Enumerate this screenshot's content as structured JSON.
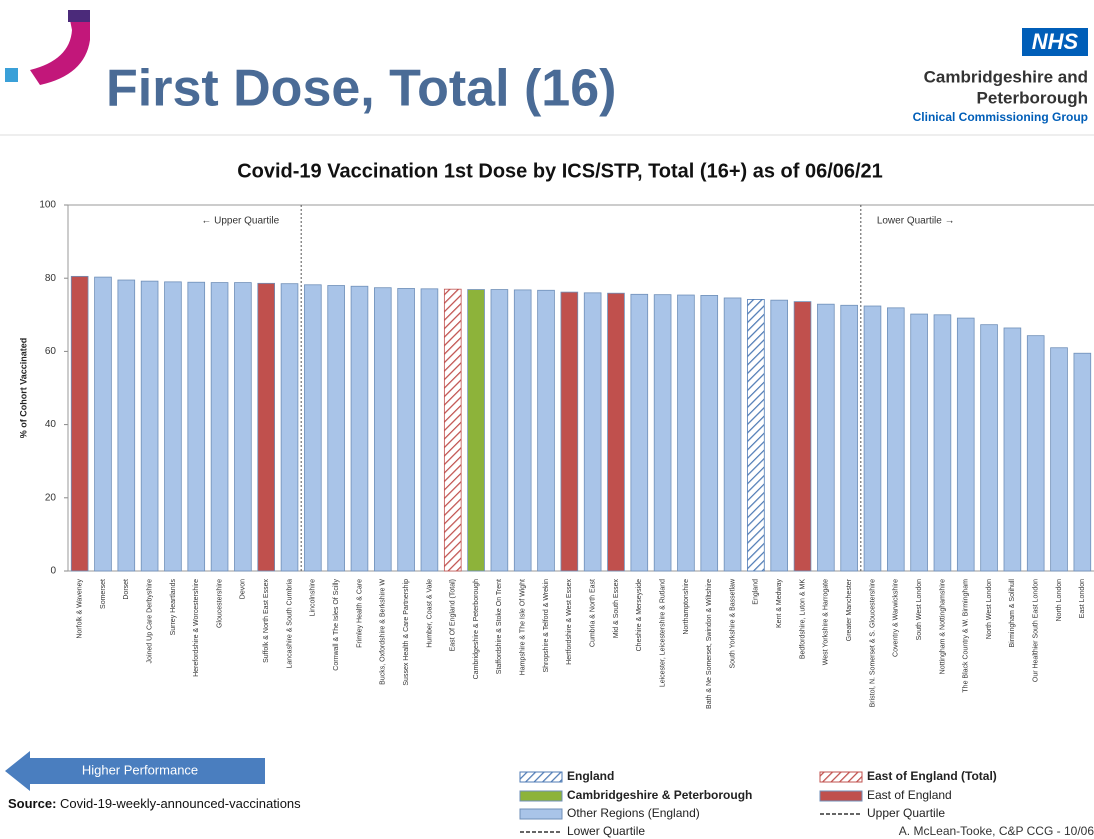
{
  "header": {
    "title": "First Dose, Total (16)",
    "logo": "NHS",
    "org_line1": "Cambridgeshire and",
    "org_line2": "Peterborough",
    "org_line3": "Clinical Commissioning Group"
  },
  "footer": {
    "arrow": "Higher Performance",
    "source_label": "Source:",
    "source": "Covid-19-weekly-announced-vaccinations",
    "credit": "A. McLean-Tooke, C&P CCG - 10/06"
  },
  "chart_data": {
    "type": "bar",
    "title": "Covid-19 Vaccination 1st Dose by ICS/STP, Total (16+) as of 06/06/21",
    "y_label": "% of Cohort Vaccinated",
    "ylim": [
      0,
      100
    ],
    "yticks": [
      0,
      20,
      40,
      60,
      80,
      100
    ],
    "categories": [
      "Norfolk & Waveney",
      "Somerset",
      "Dorset",
      "Joined Up Care Derbyshire",
      "Surrey Heartlands",
      "Herefordshire & Worcestershire",
      "Gloucestershire",
      "Devon",
      "Suffolk & North East Essex",
      "Lancashire & South Cumbria",
      "Lincolnshire",
      "Cornwall & The Isles Of Scilly",
      "Frimley Health & Care",
      "Bucks, Oxfordshire & Berkshire W",
      "Sussex Health & Care Partnership",
      "Humber, Coast & Vale",
      "East Of England (Total)",
      "Cambridgeshire & Peterborough",
      "Staffordshire & Stoke On Trent",
      "Hampshire & The Isle Of Wight",
      "Shropshire & Telford & Wrekin",
      "Hertfordshire & West Essex",
      "Cumbria & North East",
      "Mid & South Essex",
      "Cheshire & Merseyside",
      "Leicester, Leicestershire & Rutland",
      "Northamptonshire",
      "Bath & Ne Somerset, Swindon & Wiltshire",
      "South Yorkshire & Bassetlaw",
      "England",
      "Kent & Medway",
      "Bedfordshire, Luton & MK",
      "West Yorkshire & Harrogate",
      "Greater Manchester",
      "Bristol, N. Somerset & S. Gloucestershire",
      "Coventry & Warwickshire",
      "South West London",
      "Nottingham & Nottinghamshire",
      "The Black Country & W. Birmingham",
      "North West London",
      "Birmingham & Solihull",
      "Our Healthier South East London",
      "North London",
      "East London"
    ],
    "series": [
      {
        "name": "England",
        "color": "#4f7bb5",
        "hatched": true,
        "values": [
          null,
          null,
          null,
          null,
          null,
          null,
          null,
          null,
          null,
          null,
          null,
          null,
          null,
          null,
          null,
          null,
          null,
          null,
          null,
          null,
          null,
          null,
          null,
          null,
          null,
          null,
          null,
          null,
          null,
          74.2,
          null,
          null,
          null,
          null,
          null,
          null,
          null,
          null,
          null,
          null,
          null,
          null,
          null,
          null
        ]
      },
      {
        "name": "Cambridgeshire & Peterborough",
        "color": "#8db33a",
        "hatched": false,
        "values": [
          null,
          null,
          null,
          null,
          null,
          null,
          null,
          null,
          null,
          null,
          null,
          null,
          null,
          null,
          null,
          null,
          null,
          76.9,
          null,
          null,
          null,
          null,
          null,
          null,
          null,
          null,
          null,
          null,
          null,
          null,
          null,
          null,
          null,
          null,
          null,
          null,
          null,
          null,
          null,
          null,
          null,
          null,
          null,
          null
        ]
      },
      {
        "name": "Other Regions (England)",
        "color": "#a9c4e8",
        "hatched": false,
        "values": [
          null,
          80.3,
          79.5,
          79.2,
          79.0,
          78.9,
          78.8,
          78.8,
          null,
          78.5,
          78.2,
          78.0,
          77.8,
          77.4,
          77.2,
          77.1,
          null,
          null,
          76.9,
          76.8,
          76.7,
          null,
          76.0,
          null,
          75.6,
          75.5,
          75.4,
          75.3,
          74.6,
          null,
          74.0,
          null,
          72.9,
          72.6,
          72.4,
          71.9,
          70.2,
          70.0,
          69.1,
          67.3,
          66.4,
          64.3,
          61.0,
          59.5
        ]
      },
      {
        "name": "East of England (Total)",
        "color": "#c0504d",
        "hatched": true,
        "values": [
          null,
          null,
          null,
          null,
          null,
          null,
          null,
          null,
          null,
          null,
          null,
          null,
          null,
          null,
          null,
          null,
          77.0,
          null,
          null,
          null,
          null,
          null,
          null,
          null,
          null,
          null,
          null,
          null,
          null,
          null,
          null,
          null,
          null,
          null,
          null,
          null,
          null,
          null,
          null,
          null,
          null,
          null,
          null,
          null
        ]
      },
      {
        "name": "East of England",
        "color": "#c0504d",
        "hatched": false,
        "values": [
          80.5,
          null,
          null,
          null,
          null,
          null,
          null,
          null,
          78.6,
          null,
          null,
          null,
          null,
          null,
          null,
          null,
          null,
          null,
          null,
          null,
          null,
          76.2,
          null,
          75.9,
          null,
          null,
          null,
          null,
          null,
          null,
          null,
          73.6,
          null,
          null,
          null,
          null,
          null,
          null,
          null,
          null,
          null,
          null,
          null,
          null
        ]
      }
    ],
    "reference_lines": [
      {
        "name": "Upper Quartile",
        "label": "← Upper Quartile",
        "after_category": 9
      },
      {
        "name": "Lower Quartile",
        "label": "Lower Quartile →",
        "after_category": 33
      }
    ]
  }
}
